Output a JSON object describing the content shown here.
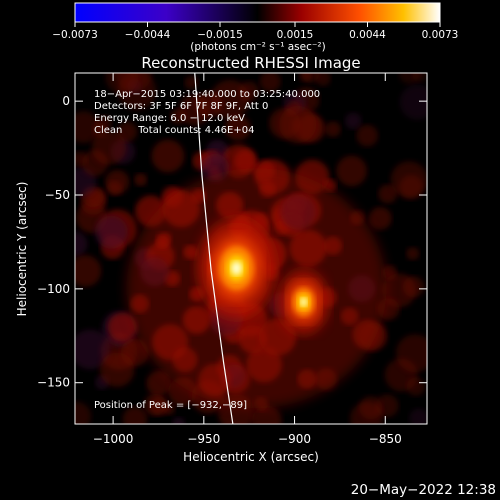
{
  "chart_data": {
    "type": "heatmap",
    "title": "Reconstructed RHESSI Image",
    "xlabel": "Heliocentric X (arcsec)",
    "ylabel": "Heliocentric Y (arcsec)",
    "xlim": [
      -1021,
      -827
    ],
    "ylim": [
      -172,
      15
    ],
    "x_ticks": [
      -1000,
      -950,
      -900,
      -850
    ],
    "y_ticks": [
      0,
      -50,
      -100,
      -150
    ],
    "x_tick_labels": [
      "−1000",
      "−950",
      "−900",
      "−850"
    ],
    "y_tick_labels": [
      "0",
      "−50",
      "−100",
      "−150"
    ],
    "colorbar": {
      "min": -0.0073,
      "max": 0.0073,
      "ticks": [
        -0.0073,
        -0.0044,
        -0.0015,
        0.0015,
        0.0044,
        0.0073
      ],
      "tick_labels": [
        "−0.0073",
        "−0.0044",
        "−0.0015",
        "0.0015",
        "0.0044",
        "0.0073"
      ],
      "unit_label": "(photons cm⁻² s⁻¹ asec⁻²)"
    },
    "info_lines": [
      "18−Apr−2015 03:19:40.000 to 03:25:40.000",
      "Detectors: 3F 5F 6F 7F 8F 9F, Att 0",
      "Energy Range: 6.0 − 12.0 keV",
      "Clean     Total counts: 4.46E+04"
    ],
    "peak_label": "Position of Peak = [−932,−89]",
    "peak": [
      -932,
      -89
    ],
    "sources": [
      {
        "x": -932,
        "y": -89,
        "amplitude": 1.0
      },
      {
        "x": -895,
        "y": -107,
        "amplitude": 0.55
      }
    ],
    "limb_arc": [
      [
        -955,
        15
      ],
      [
        -951,
        -40
      ],
      [
        -946,
        -90
      ],
      [
        -939,
        -140
      ],
      [
        -934,
        -172
      ]
    ],
    "grid": false
  },
  "footer": {
    "timestamp": "20−May−2022 12:38"
  },
  "colors": {
    "background": "#000000",
    "axis": "#ffffff",
    "colormap": [
      "#0000ff",
      "#5000b4",
      "#000000",
      "#c80000",
      "#ff7800",
      "#ffff80",
      "#ffffff"
    ]
  }
}
